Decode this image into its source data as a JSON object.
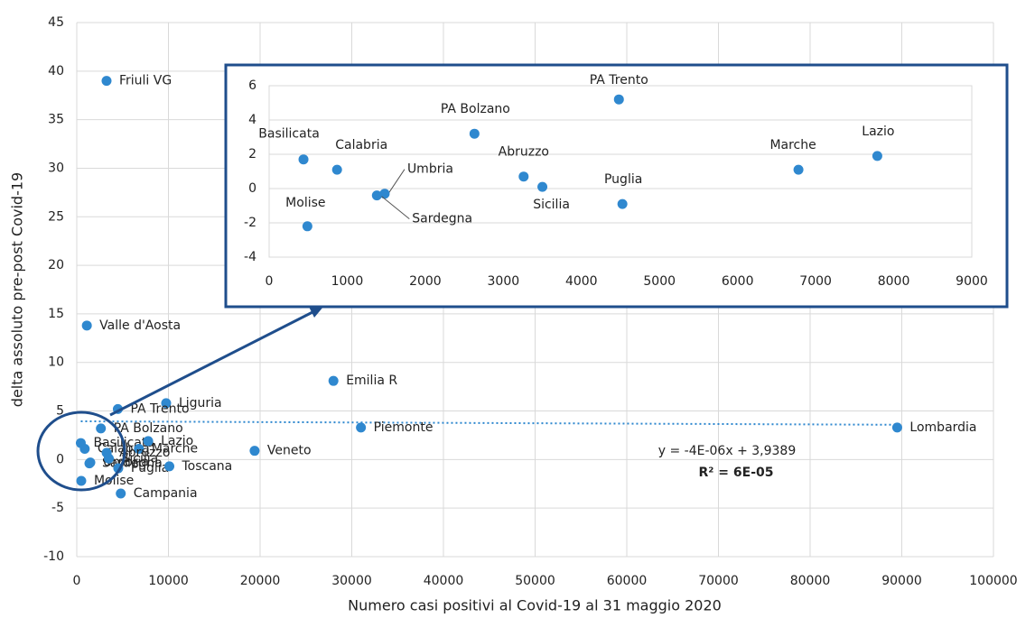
{
  "chart_data": [
    {
      "type": "scatter",
      "x_label": "Numero casi positivi al Covid-19 al 31 maggio 2020",
      "y_label": "delta assoluto pre-post Covid-19",
      "labels": [
        "Friuli VG",
        "Valle d'Aosta",
        "Liguria",
        "PA Trento",
        "PA Bolzano",
        "Emilia R",
        "Piemonte",
        "Lombardia",
        "Veneto",
        "Basilicata",
        "Calabria",
        "Marche",
        "Lazio",
        "Umbria",
        "Sardegna",
        "Abruzzo",
        "Sicilia",
        "Puglia",
        "Toscana",
        "Molise",
        "Campania"
      ],
      "x": [
        3250,
        1100,
        9750,
        4480,
        2630,
        28000,
        31000,
        89500,
        19400,
        440,
        870,
        6780,
        7790,
        1480,
        1380,
        3260,
        3500,
        4525,
        10100,
        490,
        4800
      ],
      "y": [
        39.0,
        13.8,
        5.8,
        5.2,
        3.2,
        8.1,
        3.3,
        3.3,
        0.9,
        1.7,
        1.1,
        1.1,
        1.9,
        -0.3,
        -0.4,
        0.7,
        0.1,
        -0.9,
        -0.7,
        -2.2,
        -3.5
      ],
      "color": "#2f88cf",
      "xlim": [
        0,
        100000
      ],
      "xticks": [
        0,
        10000,
        20000,
        30000,
        40000,
        50000,
        60000,
        70000,
        80000,
        90000,
        100000
      ],
      "ylim": [
        -10,
        45
      ],
      "yticks": [
        -10,
        -5,
        0,
        5,
        10,
        15,
        20,
        25,
        30,
        35,
        40,
        45
      ],
      "grid": true,
      "trendline": {
        "slope": -4e-06,
        "intercept": 3.9389,
        "equation": "y = -4E-06x + 3,9389",
        "r2": "R² = 6E-05"
      }
    },
    {
      "type": "scatter",
      "labels": [
        "Basilicata",
        "Calabria",
        "Umbria",
        "Sardegna",
        "Molise",
        "PA Bolzano",
        "Abruzzo",
        "Sicilia",
        "PA Trento",
        "Puglia",
        "Marche",
        "Lazio"
      ],
      "x": [
        440,
        870,
        1480,
        1380,
        490,
        2630,
        3260,
        3500,
        4480,
        4525,
        6780,
        7790
      ],
      "y": [
        1.7,
        1.1,
        -0.3,
        -0.4,
        -2.2,
        3.2,
        0.7,
        0.1,
        5.2,
        -0.9,
        1.1,
        1.9
      ],
      "color": "#2f88cf",
      "xlim": [
        0,
        9000
      ],
      "xticks": [
        0,
        1000,
        2000,
        3000,
        4000,
        5000,
        6000,
        7000,
        8000,
        9000
      ],
      "ylim": [
        -4,
        6
      ],
      "yticks": [
        -4,
        -2,
        0,
        2,
        4,
        6
      ],
      "grid": true
    }
  ]
}
